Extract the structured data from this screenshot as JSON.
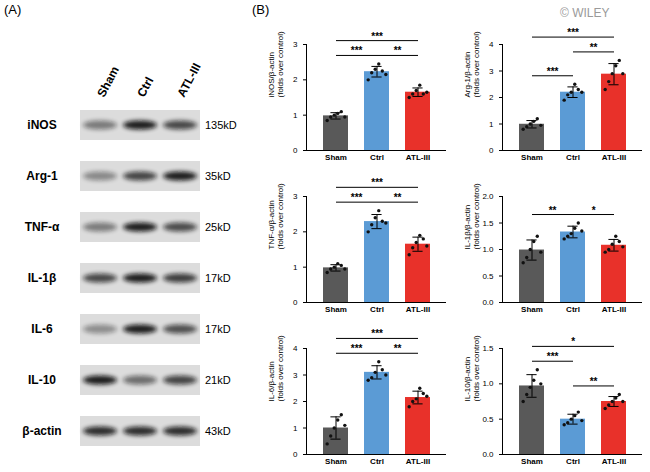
{
  "panel_labels": [
    "(A)",
    "(B)"
  ],
  "watermark": "© WILEY",
  "blot": {
    "lanes": [
      "Sham",
      "Ctrl",
      "ATL-III"
    ],
    "rows": [
      {
        "protein": "iNOS",
        "size": "135kD"
      },
      {
        "protein": "Arg-1",
        "size": "35kD"
      },
      {
        "protein": "TNF-α",
        "size": "25kD"
      },
      {
        "protein": "IL-1β",
        "size": "17kD"
      },
      {
        "protein": "IL-6",
        "size": "17kD"
      },
      {
        "protein": "IL-10",
        "size": "21kD"
      },
      {
        "protein": "β-actin",
        "size": "43kD"
      }
    ]
  },
  "chart_data": [
    {
      "type": "bar",
      "ylabel": [
        "iNOS/β-actin",
        "(folds over control)"
      ],
      "categories": [
        "Sham",
        "Ctrl",
        "ATL-III"
      ],
      "values": [
        0.98,
        2.23,
        1.65
      ],
      "errors": [
        0.09,
        0.15,
        0.12
      ],
      "points": [
        [
          0.85,
          0.95,
          1.0,
          1.05,
          1.1,
          0.95
        ],
        [
          2.0,
          2.2,
          2.3,
          2.45,
          2.25,
          2.15
        ],
        [
          1.5,
          1.6,
          1.7,
          1.85,
          1.6,
          1.65
        ]
      ],
      "colors": [
        "#595959",
        "#5b9bd5",
        "#e8312a"
      ],
      "ylim": [
        0,
        3
      ],
      "yticks": [
        0,
        1,
        2,
        3
      ],
      "significance": [
        {
          "groups": [
            "Sham",
            "Ctrl"
          ],
          "label": "***"
        },
        {
          "groups": [
            "Ctrl",
            "ATL-III"
          ],
          "label": "**"
        },
        {
          "groups": [
            "Sham",
            "ATL-III"
          ],
          "label": "***"
        }
      ]
    },
    {
      "type": "bar",
      "ylabel": [
        "Arg-1/β-actin",
        "(folds over control)"
      ],
      "categories": [
        "Sham",
        "Ctrl",
        "ATL-III"
      ],
      "values": [
        0.99,
        2.2,
        2.88
      ],
      "errors": [
        0.14,
        0.2,
        0.4
      ],
      "points": [
        [
          0.8,
          0.9,
          1.0,
          1.1,
          1.2,
          0.95
        ],
        [
          1.9,
          2.1,
          2.2,
          2.5,
          2.3,
          2.2
        ],
        [
          2.3,
          2.6,
          2.9,
          3.2,
          3.4,
          2.9
        ]
      ],
      "colors": [
        "#595959",
        "#5b9bd5",
        "#e8312a"
      ],
      "ylim": [
        0,
        4
      ],
      "yticks": [
        0,
        1,
        2,
        3,
        4
      ],
      "significance": [
        {
          "groups": [
            "Sham",
            "Ctrl"
          ],
          "label": "***"
        },
        {
          "groups": [
            "Ctrl",
            "ATL-III"
          ],
          "label": "**"
        },
        {
          "groups": [
            "Sham",
            "ATL-III"
          ],
          "label": "***"
        }
      ]
    },
    {
      "type": "bar",
      "ylabel": [
        "TNF-α/β-actin",
        "(folds over control)"
      ],
      "categories": [
        "Sham",
        "Ctrl",
        "ATL-III"
      ],
      "values": [
        0.98,
        2.29,
        1.65
      ],
      "errors": [
        0.09,
        0.2,
        0.2
      ],
      "points": [
        [
          0.85,
          0.95,
          1.0,
          1.1,
          1.05,
          0.95
        ],
        [
          2.0,
          2.2,
          2.4,
          2.6,
          2.3,
          2.25
        ],
        [
          1.35,
          1.55,
          1.7,
          1.9,
          1.8,
          1.6
        ]
      ],
      "colors": [
        "#595959",
        "#5b9bd5",
        "#e8312a"
      ],
      "ylim": [
        0,
        3
      ],
      "yticks": [
        0,
        1,
        2,
        3
      ],
      "significance": [
        {
          "groups": [
            "Sham",
            "Ctrl"
          ],
          "label": "***"
        },
        {
          "groups": [
            "Ctrl",
            "ATL-III"
          ],
          "label": "**"
        },
        {
          "groups": [
            "Sham",
            "ATL-III"
          ],
          "label": "***"
        }
      ]
    },
    {
      "type": "bar",
      "ylabel": [
        "IL-1β/β-actin",
        "(folds over control)"
      ],
      "categories": [
        "Sham",
        "Ctrl",
        "ATL-III"
      ],
      "values": [
        0.99,
        1.33,
        1.08
      ],
      "errors": [
        0.19,
        0.11,
        0.11
      ],
      "points": [
        [
          0.75,
          0.85,
          1.0,
          1.15,
          1.25,
          0.95
        ],
        [
          1.2,
          1.25,
          1.3,
          1.4,
          1.5,
          1.35
        ],
        [
          0.95,
          1.0,
          1.1,
          1.25,
          1.15,
          1.05
        ]
      ],
      "colors": [
        "#595959",
        "#5b9bd5",
        "#e8312a"
      ],
      "ylim": [
        0,
        2
      ],
      "yticks": [
        {
          "value": 0,
          "label": "0.0"
        },
        {
          "value": 0.5,
          "label": "0.5"
        },
        {
          "value": 1,
          "label": "1.0"
        },
        {
          "value": 1.5,
          "label": "1.5"
        },
        {
          "value": 2,
          "label": "2.0"
        }
      ],
      "significance": [
        {
          "groups": [
            "Sham",
            "Ctrl"
          ],
          "label": "**"
        },
        {
          "groups": [
            "Ctrl",
            "ATL-III"
          ],
          "label": "*"
        }
      ]
    },
    {
      "type": "bar",
      "ylabel": [
        "IL-6/β-actin",
        "(folds over control)"
      ],
      "categories": [
        "Sham",
        "Ctrl",
        "ATL-III"
      ],
      "values": [
        1.0,
        3.1,
        2.15
      ],
      "errors": [
        0.42,
        0.25,
        0.24
      ],
      "points": [
        [
          0.4,
          0.7,
          1.0,
          1.3,
          1.5,
          1.1
        ],
        [
          2.8,
          2.9,
          3.1,
          3.5,
          3.2,
          3.0
        ],
        [
          1.8,
          2.0,
          2.1,
          2.5,
          2.3,
          2.2
        ]
      ],
      "colors": [
        "#595959",
        "#5b9bd5",
        "#e8312a"
      ],
      "ylim": [
        0,
        4
      ],
      "yticks": [
        0,
        1,
        2,
        3,
        4
      ],
      "significance": [
        {
          "groups": [
            "Sham",
            "Ctrl"
          ],
          "label": "***"
        },
        {
          "groups": [
            "Ctrl",
            "ATL-III"
          ],
          "label": "**"
        },
        {
          "groups": [
            "Sham",
            "ATL-III"
          ],
          "label": "***"
        }
      ]
    },
    {
      "type": "bar",
      "ylabel": [
        "IL-10/β-actin",
        "(folds over control)"
      ],
      "categories": [
        "Sham",
        "Ctrl",
        "ATL-III"
      ],
      "values": [
        0.97,
        0.5,
        0.75
      ],
      "errors": [
        0.16,
        0.07,
        0.07
      ],
      "points": [
        [
          0.75,
          0.85,
          0.95,
          1.05,
          1.2,
          1.0
        ],
        [
          0.42,
          0.45,
          0.5,
          0.55,
          0.6,
          0.48
        ],
        [
          0.65,
          0.7,
          0.75,
          0.8,
          0.85,
          0.75
        ]
      ],
      "colors": [
        "#595959",
        "#5b9bd5",
        "#e8312a"
      ],
      "ylim": [
        0,
        1.5
      ],
      "yticks": [
        {
          "value": 0,
          "label": "0.0"
        },
        {
          "value": 0.5,
          "label": "0.5"
        },
        {
          "value": 1,
          "label": "1.0"
        },
        {
          "value": 1.5,
          "label": "1.5"
        }
      ],
      "significance": [
        {
          "groups": [
            "Sham",
            "Ctrl"
          ],
          "label": "***"
        },
        {
          "groups": [
            "Ctrl",
            "ATL-III"
          ],
          "label": "**"
        },
        {
          "groups": [
            "Sham",
            "ATL-III"
          ],
          "label": "*"
        }
      ]
    }
  ]
}
